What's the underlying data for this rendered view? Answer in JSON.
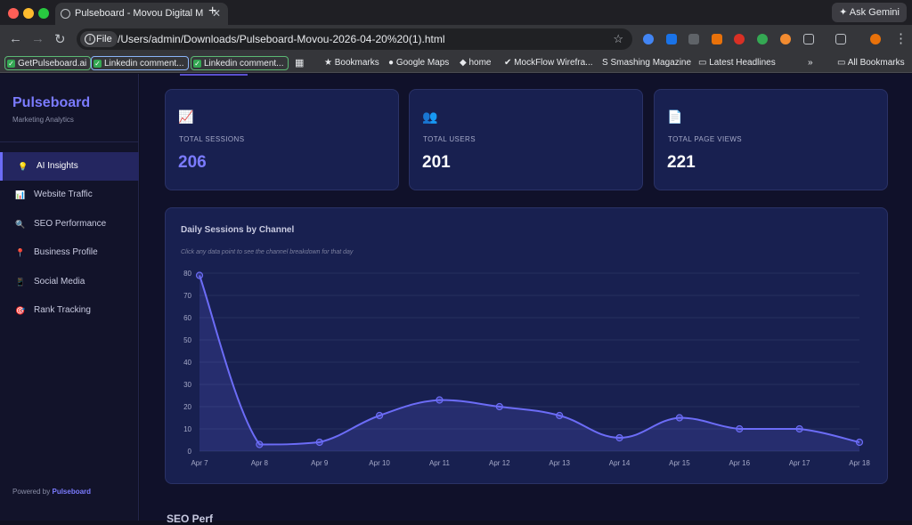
{
  "browser": {
    "tab_title": "Pulseboard - Movou Digital M",
    "url_scheme": "File",
    "url": "/Users/admin/Downloads/Pulseboard-Movou-2026-04-20%20(1).html",
    "gemini_label": "Ask Gemini",
    "bookmarks": [
      "GetPulseboard.ai",
      "Linkedin comment...",
      "Linkedin comment...",
      "Bookmarks",
      "Google Maps",
      "home",
      "MockFlow Wirefra...",
      "Smashing Magazine",
      "Latest Headlines",
      "All Bookmarks"
    ]
  },
  "sidebar": {
    "brand": "Pulseboard",
    "subtitle": "Marketing Analytics",
    "items": [
      {
        "label": "AI Insights",
        "icon": "💡"
      },
      {
        "label": "Website Traffic",
        "icon": "📊"
      },
      {
        "label": "SEO Performance",
        "icon": "🔍"
      },
      {
        "label": "Business Profile",
        "icon": "📍"
      },
      {
        "label": "Social Media",
        "icon": "📱"
      },
      {
        "label": "Rank Tracking",
        "icon": "🎯"
      }
    ],
    "powered_prefix": "Powered by",
    "powered_brand": "Pulseboard"
  },
  "stats": [
    {
      "label": "TOTAL SESSIONS",
      "value": "206",
      "icon": "📈"
    },
    {
      "label": "TOTAL USERS",
      "value": "201",
      "icon": "👥"
    },
    {
      "label": "TOTAL PAGE VIEWS",
      "value": "221",
      "icon": "📄"
    }
  ],
  "chart_title": "Daily Sessions by Channel",
  "chart_subtitle": "Click any data point to see the channel breakdown for that day",
  "bottom_heading": "SEO Perf",
  "colors": {
    "accent": "#6c6cf7",
    "card_bg": "#182050"
  },
  "chart_data": {
    "type": "line",
    "categories": [
      "Apr 7",
      "Apr 8",
      "Apr 9",
      "Apr 10",
      "Apr 11",
      "Apr 12",
      "Apr 13",
      "Apr 14",
      "Apr 15",
      "Apr 16",
      "Apr 17",
      "Apr 18"
    ],
    "values": [
      79,
      3,
      4,
      16,
      23,
      20,
      16,
      6,
      15,
      10,
      10,
      4
    ],
    "ylim": [
      0,
      80
    ],
    "yticks": [
      0,
      10,
      20,
      30,
      40,
      50,
      60,
      70,
      80
    ],
    "grid": true
  }
}
